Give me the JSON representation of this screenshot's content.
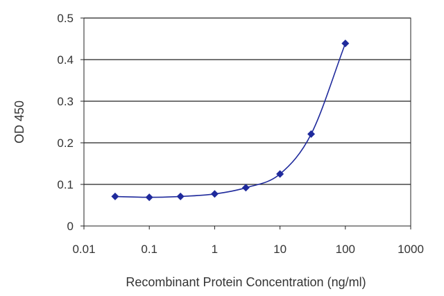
{
  "chart_data": {
    "type": "line",
    "title": "",
    "xlabel": "Recombinant Protein Concentration (ng/ml)",
    "ylabel": "OD 450",
    "x_scale": "log",
    "xlim": [
      0.01,
      1000
    ],
    "ylim": [
      0,
      0.5
    ],
    "x_ticks": [
      "0.01",
      "0.1",
      "1",
      "10",
      "100",
      "1000"
    ],
    "y_ticks": [
      "0",
      "0.1",
      "0.2",
      "0.3",
      "0.4",
      "0.5"
    ],
    "grid": "horizontal",
    "legend": "none",
    "colors": {
      "series": "#1f2a9c",
      "grid": "#222222",
      "axis": "#222222",
      "text": "#333333"
    },
    "series": [
      {
        "x": [
          0.03,
          0.1,
          0.3,
          1,
          3,
          10,
          30,
          100
        ],
        "y": [
          0.071,
          0.069,
          0.071,
          0.077,
          0.092,
          0.125,
          0.221,
          0.439
        ]
      }
    ]
  }
}
